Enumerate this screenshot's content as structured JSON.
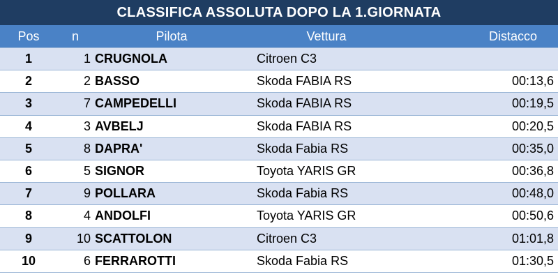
{
  "title": "CLASSIFICA ASSOLUTA DOPO LA 1.GIORNATA",
  "colors": {
    "title_bg": "#1f3d62",
    "header_bg": "#4a82c6",
    "row_alt_bg": "#d9e1f2",
    "row_plain_bg": "#ffffff",
    "grid_line": "#9bb6d6"
  },
  "headers": {
    "pos": "Pos",
    "n": "n",
    "pilota": "Pilota",
    "vettura": "Vettura",
    "distacco": "Distacco"
  },
  "rows": [
    {
      "pos": "1",
      "n": "1",
      "pilota": "CRUGNOLA",
      "vettura": "Citroen C3",
      "distacco": ""
    },
    {
      "pos": "2",
      "n": "2",
      "pilota": "BASSO",
      "vettura": "Skoda FABIA RS",
      "distacco": "00:13,6"
    },
    {
      "pos": "3",
      "n": "7",
      "pilota": "CAMPEDELLI",
      "vettura": "Skoda FABIA RS",
      "distacco": "00:19,5"
    },
    {
      "pos": "4",
      "n": "3",
      "pilota": "AVBELJ",
      "vettura": "Skoda FABIA RS",
      "distacco": "00:20,5"
    },
    {
      "pos": "5",
      "n": "8",
      "pilota": "DAPRA'",
      "vettura": "Skoda Fabia RS",
      "distacco": "00:35,0"
    },
    {
      "pos": "6",
      "n": "5",
      "pilota": "SIGNOR",
      "vettura": "Toyota YARIS GR",
      "distacco": "00:36,8"
    },
    {
      "pos": "7",
      "n": "9",
      "pilota": "POLLARA",
      "vettura": "Skoda Fabia RS",
      "distacco": "00:48,0"
    },
    {
      "pos": "8",
      "n": "4",
      "pilota": "ANDOLFI",
      "vettura": "Toyota YARIS GR",
      "distacco": "00:50,6"
    },
    {
      "pos": "9",
      "n": "10",
      "pilota": "SCATTOLON",
      "vettura": "Citroen C3",
      "distacco": "01:01,8"
    },
    {
      "pos": "10",
      "n": "6",
      "pilota": "FERRAROTTI",
      "vettura": "Skoda Fabia RS",
      "distacco": "01:30,5"
    }
  ]
}
